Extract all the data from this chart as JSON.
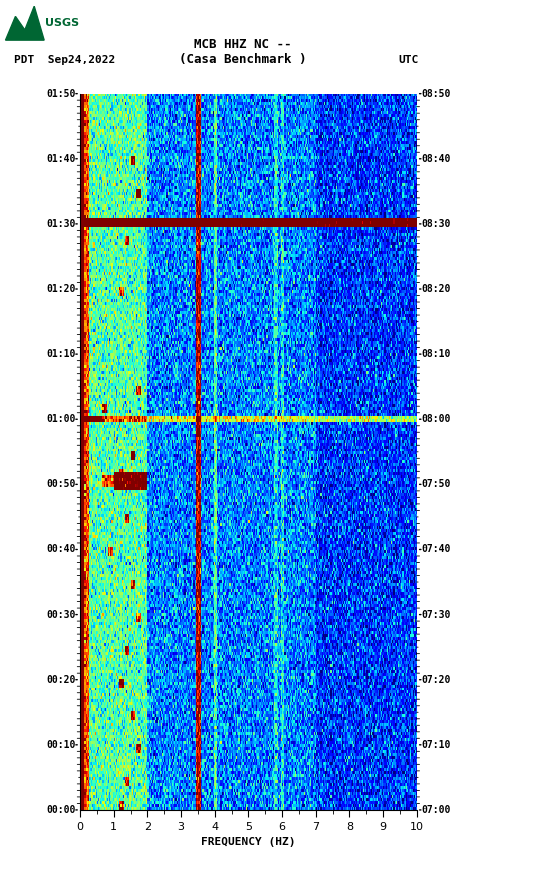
{
  "title_line1": "MCB HHZ NC --",
  "title_line2": "(Casa Benchmark )",
  "date_label": "PDT  Sep24,2022",
  "utc_label": "UTC",
  "left_times": [
    "00:00",
    "00:10",
    "00:20",
    "00:30",
    "00:40",
    "00:50",
    "01:00",
    "01:10",
    "01:20",
    "01:30",
    "01:40",
    "01:50"
  ],
  "right_times": [
    "07:00",
    "07:10",
    "07:20",
    "07:30",
    "07:40",
    "07:50",
    "08:00",
    "08:10",
    "08:20",
    "08:30",
    "08:40",
    "08:50"
  ],
  "freq_label": "FREQUENCY (HZ)",
  "freq_min": 0,
  "freq_max": 10,
  "n_time": 240,
  "n_freq": 300,
  "background_color": "#ffffff",
  "fig_width": 5.52,
  "fig_height": 8.92
}
